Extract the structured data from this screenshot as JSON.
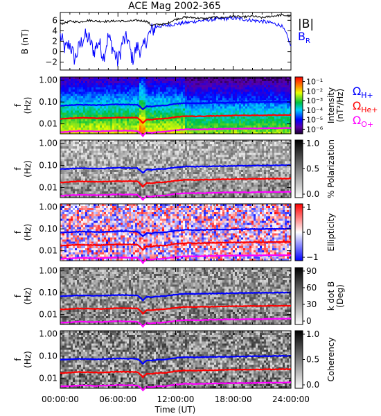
{
  "chart_data": [
    {
      "type": "line",
      "title": "ACE Mag 2002-365",
      "ylabel": "B (nT)",
      "ylim": [
        -3.5,
        7.5
      ],
      "yticks": [
        -2,
        0,
        2,
        4,
        6
      ],
      "xlim": [
        0,
        24
      ],
      "series": [
        {
          "name": "|B|",
          "color": "#000000",
          "x": [
            0,
            1,
            2,
            3,
            4,
            5,
            6,
            7,
            8,
            9,
            9.5,
            10,
            11,
            12,
            13,
            14,
            15,
            16,
            17,
            18,
            19,
            20,
            21,
            22,
            23,
            24
          ],
          "y": [
            5.3,
            5.8,
            5.7,
            6.0,
            5.8,
            5.8,
            5.9,
            5.8,
            6.0,
            5.8,
            5.0,
            5.2,
            5.3,
            6.2,
            6.6,
            6.5,
            6.3,
            6.6,
            6.5,
            6.8,
            6.6,
            6.8,
            6.5,
            6.8,
            7.0,
            6.8
          ]
        },
        {
          "name": "B_R",
          "color": "#0000ff",
          "x": [
            0,
            0.5,
            1,
            1.5,
            2,
            2.5,
            3,
            3.5,
            4,
            4.5,
            5,
            5.5,
            6,
            6.5,
            7,
            7.5,
            8,
            8.5,
            9,
            9.5,
            10,
            11,
            12,
            13,
            14,
            15,
            16,
            17,
            18,
            19,
            20,
            21,
            22,
            23,
            23.5,
            24
          ],
          "y": [
            3.0,
            0.5,
            1.5,
            -1.5,
            1.0,
            3.0,
            2.5,
            0.0,
            2.0,
            -1.0,
            3.0,
            0.5,
            -2.0,
            2.0,
            2.5,
            -1.5,
            1.0,
            0.0,
            2.5,
            4.0,
            4.8,
            5.0,
            5.3,
            5.5,
            5.8,
            6.0,
            6.2,
            6.3,
            6.4,
            6.2,
            6.0,
            5.8,
            5.5,
            5.0,
            3.5,
            1.0
          ]
        }
      ],
      "legend": [
        "|B|",
        "B_R"
      ]
    },
    {
      "type": "heatmap",
      "ylabel": "f (Hz)",
      "yscale": "log",
      "ylim": [
        0.0035,
        1.4
      ],
      "yticks": [
        "1.00",
        "0.10",
        "0.01"
      ],
      "colorbar": {
        "label": "Intensity (nT²/Hz)",
        "ticks": [
          "10⁻¹",
          "10⁻²",
          "10⁻³",
          "10⁻⁴",
          "10⁻⁵",
          "10⁻⁶"
        ],
        "scale": "rainbow"
      },
      "right_labels": [
        "Ω_H+",
        "Ω_He+",
        "Ω_O+"
      ]
    },
    {
      "type": "heatmap",
      "ylabel": "f (Hz)",
      "yscale": "log",
      "ylim": [
        0.0035,
        1.4
      ],
      "yticks": [
        "1.00",
        "0.10",
        "0.01"
      ],
      "colorbar": {
        "label": "% Polarization",
        "ticks": [
          "1.0",
          "0.5",
          "0.0"
        ],
        "scale": "gray"
      }
    },
    {
      "type": "heatmap",
      "ylabel": "f (Hz)",
      "yscale": "log",
      "ylim": [
        0.0035,
        1.4
      ],
      "yticks": [
        "1.00",
        "0.10",
        "0.01"
      ],
      "colorbar": {
        "label": "Ellipticity",
        "ticks": [
          "1",
          "0",
          "−1"
        ],
        "scale": "red-white-blue"
      }
    },
    {
      "type": "heatmap",
      "ylabel": "f (Hz)",
      "yscale": "log",
      "ylim": [
        0.0035,
        1.4
      ],
      "yticks": [
        "1.00",
        "0.10",
        "0.01"
      ],
      "colorbar": {
        "label": "k dot B (Deg)",
        "ticks": [
          "90",
          "60",
          "30",
          "0"
        ],
        "scale": "gray"
      }
    },
    {
      "type": "heatmap",
      "ylabel": "f (Hz)",
      "yscale": "log",
      "ylim": [
        0.0035,
        1.4
      ],
      "yticks": [
        "1.00",
        "0.10",
        "0.01"
      ],
      "colorbar": {
        "label": "Coherency",
        "ticks": [
          "1.0",
          "0.5",
          "0.0"
        ],
        "scale": "gray"
      }
    }
  ],
  "gyro_lines": {
    "x": [
      0,
      2,
      4,
      6,
      8,
      8.6,
      9,
      9.5,
      10,
      11,
      12,
      13,
      14,
      16,
      18,
      20,
      22,
      24
    ],
    "H": [
      0.068,
      0.075,
      0.072,
      0.078,
      0.075,
      0.045,
      0.065,
      0.062,
      0.068,
      0.07,
      0.082,
      0.09,
      0.088,
      0.092,
      0.095,
      0.098,
      0.1,
      0.102
    ],
    "He": [
      0.017,
      0.019,
      0.018,
      0.0195,
      0.019,
      0.011,
      0.016,
      0.0155,
      0.017,
      0.0175,
      0.0205,
      0.0225,
      0.022,
      0.023,
      0.024,
      0.0245,
      0.025,
      0.0255
    ],
    "O": [
      0.0042,
      0.0047,
      0.0045,
      0.0049,
      0.0047,
      0.0028,
      0.0041,
      0.0039,
      0.0042,
      0.0044,
      0.0051,
      0.0056,
      0.0055,
      0.0058,
      0.006,
      0.0061,
      0.0063,
      0.0064
    ],
    "colors": {
      "H": "#0000ff",
      "He": "#ff0000",
      "O": "#ff00ff"
    }
  },
  "x_axis": {
    "ticks": [
      "00:00:00",
      "06:00:00",
      "12:00:00",
      "18:00:00",
      "24:00:00"
    ],
    "label": "Time (UT)"
  }
}
